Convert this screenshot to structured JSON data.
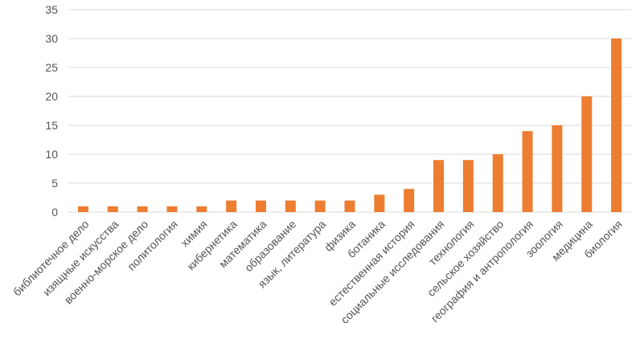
{
  "chart_data": {
    "type": "bar",
    "categories": [
      "библиотечное дело",
      "изящные искусства",
      "военно-морское дело",
      "политология",
      "химия",
      "кибернетика",
      "математика",
      "образование",
      "язык, литература",
      "физика",
      "ботаника",
      "естественная история",
      "социальные исследования",
      "технология",
      "сельское хозяйство",
      "география и антропология",
      "зоология",
      "медицина",
      "биология"
    ],
    "values": [
      1,
      1,
      1,
      1,
      1,
      2,
      2,
      2,
      2,
      2,
      3,
      4,
      9,
      9,
      10,
      14,
      15,
      20,
      30
    ],
    "title": "",
    "xlabel": "",
    "ylabel": "",
    "ylim": [
      0,
      35
    ],
    "yticks": [
      "0",
      "5",
      "10",
      "15",
      "20",
      "25",
      "30",
      "35"
    ],
    "grid": true,
    "legend": "none",
    "bar_color": "#ed7d31",
    "grid_color": "#d9d9d9",
    "text_color": "#555555"
  }
}
